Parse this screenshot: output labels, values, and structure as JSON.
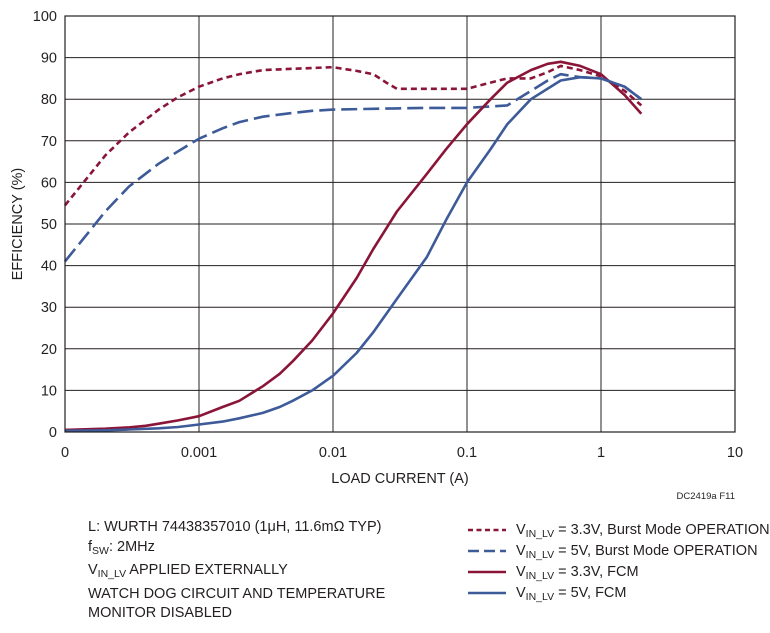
{
  "chart_data": {
    "type": "line",
    "title": "",
    "xlabel": "LOAD CURRENT (A)",
    "ylabel": "EFFICIENCY (%)",
    "x_scale": "log",
    "xlim": [
      0.0001,
      10
    ],
    "ylim": [
      0,
      100
    ],
    "grid": true,
    "x_tick_labels": [
      "0",
      "0.001",
      "0.01",
      "0.1",
      "1",
      "10"
    ],
    "y_ticks": [
      0,
      10,
      20,
      30,
      40,
      50,
      60,
      70,
      80,
      90,
      100
    ],
    "figure_code": "DC2419a F11",
    "colors": {
      "vin_3v3": "#8a1538",
      "vin_5v": "#3d5a99"
    },
    "series": [
      {
        "name_main": "V",
        "name_sub": "IN_LV",
        "name_rest": " = 3.3V, Burst Mode OPERATION",
        "color": "#8a1538",
        "dash": "dashed",
        "x": [
          0.0001,
          0.00015,
          0.0002,
          0.0003,
          0.0005,
          0.0007,
          0.001,
          0.0015,
          0.002,
          0.003,
          0.005,
          0.007,
          0.01,
          0.015,
          0.02,
          0.025,
          0.03,
          0.05,
          0.07,
          0.1,
          0.15,
          0.2,
          0.3,
          0.4,
          0.5,
          0.7,
          1,
          1.5,
          2
        ],
        "y": [
          54.5,
          61.5,
          66.5,
          72,
          77.5,
          80.5,
          83,
          85,
          86,
          87,
          87.3,
          87.5,
          87.7,
          86.8,
          86,
          84,
          82.5,
          82.5,
          82.5,
          82.5,
          84,
          85,
          85,
          86.5,
          88,
          87,
          85.5,
          82,
          78.5
        ]
      },
      {
        "name_main": "V",
        "name_sub": "IN_LV",
        "name_rest": " = 5V, Burst Mode OPERATION",
        "color": "#3d5a99",
        "dash": "longdash",
        "x": [
          0.0001,
          0.00015,
          0.0002,
          0.0003,
          0.0005,
          0.0007,
          0.001,
          0.0015,
          0.002,
          0.003,
          0.005,
          0.007,
          0.01,
          0.02,
          0.03,
          0.05,
          0.1,
          0.2,
          0.3,
          0.4,
          0.5,
          0.7,
          1,
          1.5,
          2
        ],
        "y": [
          41,
          48,
          53,
          59,
          64.5,
          67.5,
          70.5,
          73,
          74.5,
          75.8,
          76.7,
          77.2,
          77.5,
          77.7,
          77.8,
          77.9,
          77.9,
          78.5,
          82,
          84.5,
          86,
          85.3,
          85,
          83,
          80
        ]
      },
      {
        "name_main": "V",
        "name_sub": "IN_LV",
        "name_rest": " = 3.3V, FCM",
        "color": "#8a1538",
        "dash": "solid",
        "x": [
          0.0001,
          0.0002,
          0.0003,
          0.0004,
          0.0005,
          0.0007,
          0.001,
          0.0015,
          0.002,
          0.003,
          0.004,
          0.005,
          0.007,
          0.01,
          0.015,
          0.02,
          0.03,
          0.05,
          0.07,
          0.1,
          0.15,
          0.2,
          0.3,
          0.4,
          0.5,
          0.7,
          1,
          1.5,
          2
        ],
        "y": [
          0.5,
          0.8,
          1.1,
          1.5,
          2,
          2.8,
          3.8,
          6,
          7.5,
          11,
          14,
          17,
          22,
          28.5,
          37,
          44,
          53,
          62,
          68,
          74,
          80,
          84,
          87,
          88.5,
          89,
          88,
          86,
          81,
          76.5
        ]
      },
      {
        "name_main": "V",
        "name_sub": "IN_LV",
        "name_rest": " = 5V, FCM",
        "color": "#3d5a99",
        "dash": "solid",
        "x": [
          0.0001,
          0.0002,
          0.0003,
          0.0005,
          0.0007,
          0.001,
          0.0015,
          0.002,
          0.003,
          0.004,
          0.005,
          0.007,
          0.01,
          0.015,
          0.02,
          0.03,
          0.05,
          0.07,
          0.1,
          0.15,
          0.2,
          0.3,
          0.5,
          0.7,
          1,
          1.5,
          2
        ],
        "y": [
          0.3,
          0.4,
          0.6,
          0.9,
          1.2,
          1.8,
          2.5,
          3.3,
          4.6,
          6,
          7.5,
          10,
          13.5,
          19,
          24,
          32,
          42,
          51,
          60,
          68,
          74,
          80,
          84.5,
          85.3,
          85,
          83,
          80
        ]
      }
    ],
    "notes": {
      "line1": "L: WURTH 74438357010 (1μH, 11.6mΩ TYP)",
      "line2_main": "f",
      "line2_sub": "SW",
      "line2_rest": ": 2MHz",
      "line3_main": "V",
      "line3_sub": "IN_LV",
      "line3_rest": " APPLIED EXTERNALLY",
      "line4": "WATCH DOG CIRCUIT AND TEMPERATURE",
      "line5": "MONITOR DISABLED"
    }
  }
}
